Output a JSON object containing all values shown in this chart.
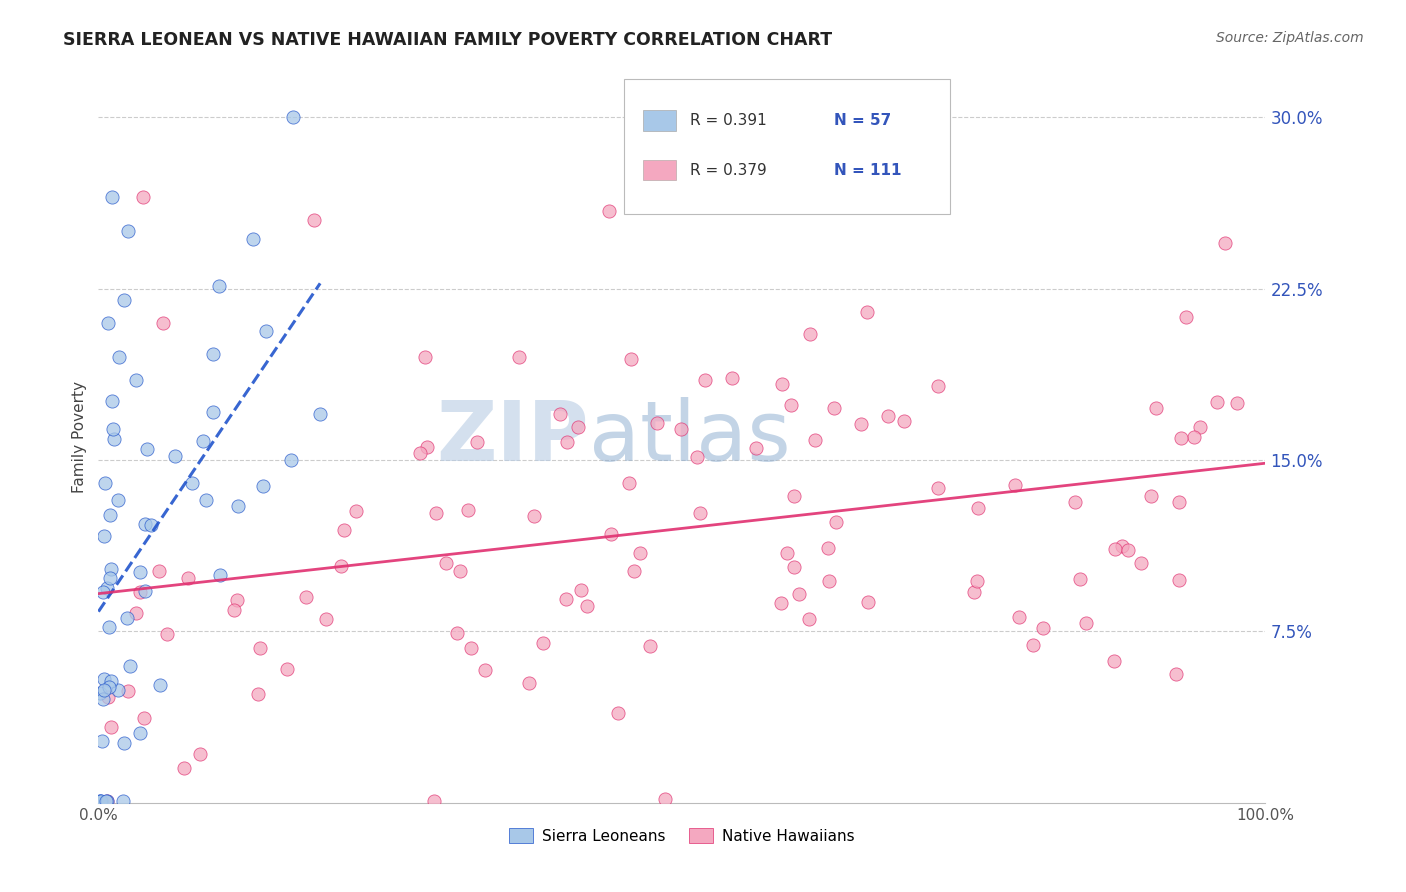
{
  "title": "SIERRA LEONEAN VS NATIVE HAWAIIAN FAMILY POVERTY CORRELATION CHART",
  "source": "Source: ZipAtlas.com",
  "ylabel": "Family Poverty",
  "xlim": [
    0.0,
    1.0
  ],
  "ylim": [
    0.0,
    0.32
  ],
  "x_tick_vals": [
    0.0,
    1.0
  ],
  "x_tick_labels": [
    "0.0%",
    "100.0%"
  ],
  "y_tick_vals": [
    0.075,
    0.15,
    0.225,
    0.3
  ],
  "y_tick_labels": [
    "7.5%",
    "15.0%",
    "22.5%",
    "30.0%"
  ],
  "legend_r1": "R = 0.391",
  "legend_n1": "N = 57",
  "legend_r2": "R = 0.379",
  "legend_n2": "N = 111",
  "legend_label1": "Sierra Leoneans",
  "legend_label2": "Native Hawaiians",
  "color1": "#a8c8e8",
  "color2": "#f4a8c0",
  "trendline1_color": "#2255cc",
  "trendline2_color": "#e03070",
  "grid_color": "#cccccc",
  "watermark_zip": "#b8cce0",
  "watermark_atlas": "#90b8d8"
}
